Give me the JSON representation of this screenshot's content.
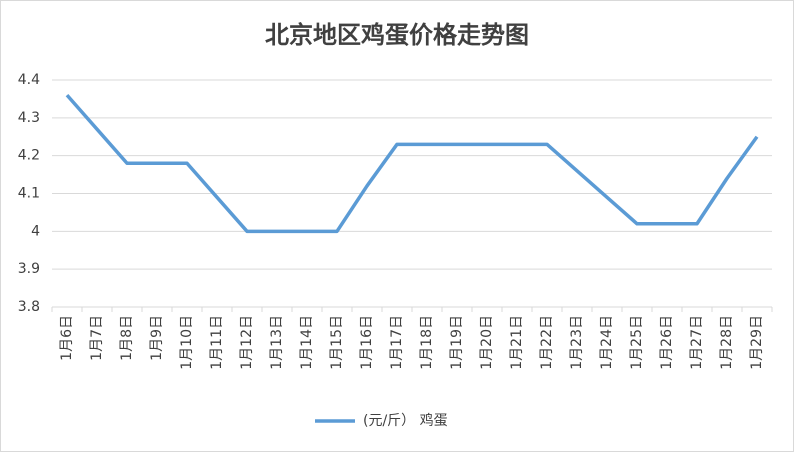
{
  "chart_data": {
    "type": "line",
    "title": "北京地区鸡蛋价格走势图",
    "categories": [
      "1月6日",
      "1月7日",
      "1月8日",
      "1月9日",
      "1月10日",
      "1月11日",
      "1月12日",
      "1月13日",
      "1月14日",
      "1月15日",
      "1月16日",
      "1月17日",
      "1月18日",
      "1月19日",
      "1月20日",
      "1月21日",
      "1月22日",
      "1月23日",
      "1月24日",
      "1月25日",
      "1月26日",
      "1月27日",
      "1月28日",
      "1月29日"
    ],
    "series": [
      {
        "name": "(元/斤） 鸡蛋",
        "color": "#5b9bd5",
        "values": [
          4.36,
          4.27,
          4.18,
          4.18,
          4.18,
          4.09,
          4.0,
          4.0,
          4.0,
          4.0,
          4.12,
          4.23,
          4.23,
          4.23,
          4.23,
          4.23,
          4.23,
          4.16,
          4.09,
          4.02,
          4.02,
          4.02,
          4.14,
          4.25
        ]
      }
    ],
    "ylim": [
      3.8,
      4.4
    ],
    "yticks": [
      3.8,
      3.9,
      4,
      4.1,
      4.2,
      4.3,
      4.4
    ],
    "grid": true,
    "legend": "bottom"
  }
}
